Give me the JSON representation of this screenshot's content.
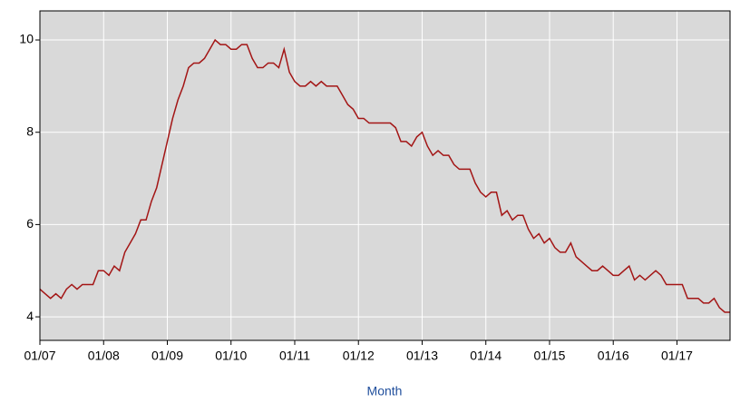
{
  "chart_data": {
    "type": "line",
    "x_label": "Month",
    "categories": [
      "01/07",
      null,
      null,
      null,
      null,
      null,
      null,
      null,
      null,
      null,
      null,
      null,
      "01/08",
      null,
      null,
      null,
      null,
      null,
      null,
      null,
      null,
      null,
      null,
      null,
      "01/09",
      null,
      null,
      null,
      null,
      null,
      null,
      null,
      null,
      null,
      null,
      null,
      "01/10",
      null,
      null,
      null,
      null,
      null,
      null,
      null,
      null,
      null,
      null,
      null,
      "01/11",
      null,
      null,
      null,
      null,
      null,
      null,
      null,
      null,
      null,
      null,
      null,
      "01/12",
      null,
      null,
      null,
      null,
      null,
      null,
      null,
      null,
      null,
      null,
      null,
      "01/13",
      null,
      null,
      null,
      null,
      null,
      null,
      null,
      null,
      null,
      null,
      null,
      "01/14",
      null,
      null,
      null,
      null,
      null,
      null,
      null,
      null,
      null,
      null,
      null,
      "01/15",
      null,
      null,
      null,
      null,
      null,
      null,
      null,
      null,
      null,
      null,
      null,
      "01/16",
      null,
      null,
      null,
      null,
      null,
      null,
      null,
      null,
      null,
      null,
      null,
      "01/17",
      null,
      null,
      null,
      null,
      null,
      null,
      null,
      null,
      null,
      null
    ],
    "values": [
      4.6,
      4.5,
      4.4,
      4.5,
      4.4,
      4.6,
      4.7,
      4.6,
      4.7,
      4.7,
      4.7,
      5.0,
      5.0,
      4.9,
      5.1,
      5.0,
      5.4,
      5.6,
      5.8,
      6.1,
      6.1,
      6.5,
      6.8,
      7.3,
      7.8,
      8.3,
      8.7,
      9.0,
      9.4,
      9.5,
      9.5,
      9.6,
      9.8,
      10.0,
      9.9,
      9.9,
      9.8,
      9.8,
      9.9,
      9.9,
      9.6,
      9.4,
      9.4,
      9.5,
      9.5,
      9.4,
      9.8,
      9.3,
      9.1,
      9.0,
      9.0,
      9.1,
      9.0,
      9.1,
      9.0,
      9.0,
      9.0,
      8.8,
      8.6,
      8.5,
      8.3,
      8.3,
      8.2,
      8.2,
      8.2,
      8.2,
      8.2,
      8.1,
      7.8,
      7.8,
      7.7,
      7.9,
      8.0,
      7.7,
      7.5,
      7.6,
      7.5,
      7.5,
      7.3,
      7.2,
      7.2,
      7.2,
      6.9,
      6.7,
      6.6,
      6.7,
      6.7,
      6.2,
      6.3,
      6.1,
      6.2,
      6.2,
      5.9,
      5.7,
      5.8,
      5.6,
      5.7,
      5.5,
      5.4,
      5.4,
      5.6,
      5.3,
      5.2,
      5.1,
      5.0,
      5.0,
      5.1,
      5.0,
      4.9,
      4.9,
      5.0,
      5.1,
      4.8,
      4.9,
      4.8,
      4.9,
      5.0,
      4.9,
      4.7,
      4.7,
      4.7,
      4.7,
      4.4,
      4.4,
      4.4,
      4.3,
      4.3,
      4.4,
      4.2,
      4.1,
      4.1
    ],
    "color": "#a31515",
    "ylim": [
      3.49,
      10.63
    ],
    "yticks": [
      4,
      6,
      8,
      10
    ],
    "grid": true
  }
}
